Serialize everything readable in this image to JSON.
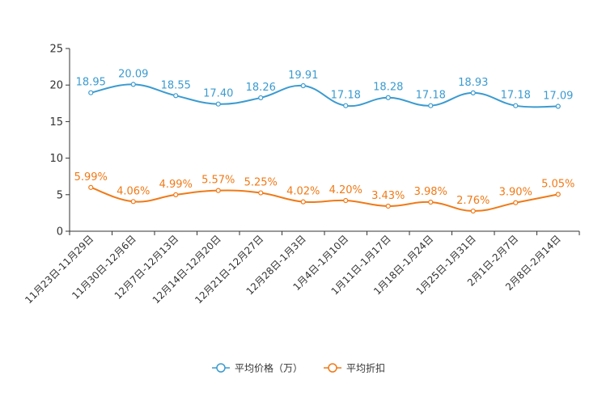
{
  "chart_data": {
    "type": "line",
    "categories": [
      "11月23日-11月29日",
      "11月30日-12月6日",
      "12月7日-12月13日",
      "12月14日-12月20日",
      "12月21日-12月27日",
      "12月28日-1月3日",
      "1月4日-1月10日",
      "1月11日-1月17日",
      "1月18日-1月24日",
      "1月25日-1月31日",
      "2月1日-2月7日",
      "2月8日-2月14日"
    ],
    "series": [
      {
        "name": "平均价格（万）",
        "color": "#3b9bd0",
        "values": [
          18.95,
          20.09,
          18.55,
          17.4,
          18.26,
          19.91,
          17.18,
          18.28,
          17.18,
          18.93,
          17.18,
          17.09
        ],
        "labels": [
          "18.95",
          "20.09",
          "18.55",
          "17.40",
          "18.26",
          "19.91",
          "17.18",
          "18.28",
          "17.18",
          "18.93",
          "17.18",
          "17.09"
        ]
      },
      {
        "name": "平均折扣",
        "color": "#f07a17",
        "values": [
          5.99,
          4.06,
          4.99,
          5.57,
          5.25,
          4.02,
          4.2,
          3.43,
          3.98,
          2.76,
          3.9,
          5.05
        ],
        "labels": [
          "5.99%",
          "4.06%",
          "4.99%",
          "5.57%",
          "5.25%",
          "4.02%",
          "4.20%",
          "3.43%",
          "3.98%",
          "2.76%",
          "3.90%",
          "5.05%"
        ]
      }
    ],
    "yticks": [
      "0",
      "5",
      "10",
      "15",
      "20",
      "25"
    ],
    "ylim": [
      0,
      25
    ],
    "legend_position": "bottom-center"
  }
}
